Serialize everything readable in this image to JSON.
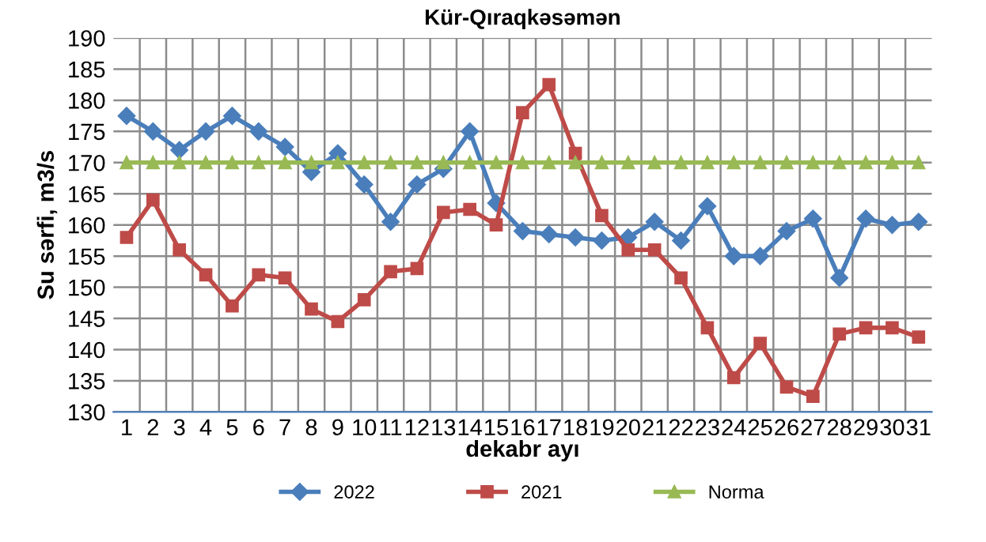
{
  "chart_data": {
    "type": "line",
    "title": "Kür-Qıraqkəsəmən",
    "xlabel": "dekabr ayı",
    "ylabel": "Su sərfi, m3/s",
    "categories": [
      "1",
      "2",
      "3",
      "4",
      "5",
      "6",
      "7",
      "8",
      "9",
      "10",
      "11",
      "12",
      "13",
      "14",
      "15",
      "16",
      "17",
      "18",
      "19",
      "20",
      "21",
      "22",
      "23",
      "24",
      "25",
      "26",
      "27",
      "28",
      "29",
      "30",
      "31"
    ],
    "series": [
      {
        "name": "2022",
        "color": "#4a7ebb",
        "marker": "diamond",
        "values": [
          177.5,
          175,
          172,
          175,
          177.5,
          175,
          172.5,
          168.5,
          171.5,
          166.5,
          160.5,
          166.5,
          169,
          175,
          163.5,
          159,
          158.5,
          158,
          157.5,
          158,
          160.5,
          157.5,
          163,
          155,
          155,
          159,
          161,
          151.5,
          161,
          160,
          160.5
        ]
      },
      {
        "name": "2021",
        "color": "#be4b48",
        "marker": "square",
        "values": [
          158,
          164,
          156,
          152,
          147,
          152,
          151.5,
          146.5,
          144.5,
          148,
          152.5,
          153,
          162,
          162.5,
          160,
          178,
          182.5,
          171.5,
          161.5,
          156,
          156,
          151.5,
          143.5,
          135.5,
          141,
          134,
          132.5,
          142.5,
          143.5,
          143.5,
          142
        ]
      },
      {
        "name": "Norma",
        "color": "#98b954",
        "marker": "triangle",
        "values": [
          170,
          170,
          170,
          170,
          170,
          170,
          170,
          170,
          170,
          170,
          170,
          170,
          170,
          170,
          170,
          170,
          170,
          170,
          170,
          170,
          170,
          170,
          170,
          170,
          170,
          170,
          170,
          170,
          170,
          170,
          170
        ]
      }
    ],
    "ylim": [
      130,
      190
    ],
    "yticks": [
      130,
      135,
      140,
      145,
      150,
      155,
      160,
      165,
      170,
      175,
      180,
      185,
      190
    ],
    "grid": true,
    "legend": "bottom"
  }
}
